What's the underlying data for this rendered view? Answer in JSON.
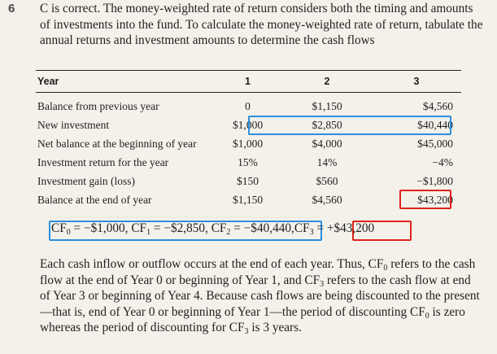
{
  "question_number": "6",
  "intro": "C is correct. The money-weighted rate of return considers both the timing and amounts of investments into the fund. To calculate the money-weighted rate of return, tabulate the annual returns and investment amounts to determine the cash flows",
  "table": {
    "headers": [
      "Year",
      "1",
      "2",
      "3"
    ],
    "rows": [
      {
        "label": "Balance from previous year",
        "v1": "0",
        "v2": "$1,150",
        "v3": "$4,560"
      },
      {
        "label": "New investment",
        "v1": "$1,000",
        "v2": "$2,850",
        "v3": "$40,440"
      },
      {
        "label": "Net balance at the beginning of year",
        "v1": "$1,000",
        "v2": "$4,000",
        "v3": "$45,000"
      },
      {
        "label": "Investment return for the year",
        "v1": "15%",
        "v2": "14%",
        "v3": "−4%"
      },
      {
        "label": "Investment gain (loss)",
        "v1": "$150",
        "v2": "$560",
        "v3": "−$1,800"
      },
      {
        "label": "Balance at the end of year",
        "v1": "$1,150",
        "v2": "$4,560",
        "v3": "$43,200"
      }
    ]
  },
  "formula": {
    "cf0_label": "CF",
    "cf0_sub": "0",
    "cf0_value": " = −$1,000, ",
    "cf1_label": "CF",
    "cf1_sub": "1",
    "cf1_value": " = −$2,850, ",
    "cf2_label": "CF",
    "cf2_sub": "2",
    "cf2_value": " = −$40,440,",
    "cf3_label": "CF",
    "cf3_sub": "3",
    "cf3_eq": " = ",
    "cf3_value": "+$43,200"
  },
  "closing": {
    "p1": "Each cash inflow or outflow occurs at the end of each year. Thus, CF",
    "s1": "0",
    "p2": " refers to the cash flow at the end of Year 0 or beginning of Year 1, and CF",
    "s2": "3",
    "p3": " refers to the cash flow at end of Year 3 or beginning of Year 4. Because cash flows are being discounted to the present—that is, end of Year 0 or beginning of Year 1—the period of discounting CF",
    "s3": "0",
    "p4": " is zero whereas the period of discounting for CF",
    "s4": "3",
    "p5": " is 3 years."
  },
  "colors": {
    "highlight_blue": "#2b8fe0",
    "highlight_red": "#e0231c",
    "background": "#f4f1ea"
  }
}
